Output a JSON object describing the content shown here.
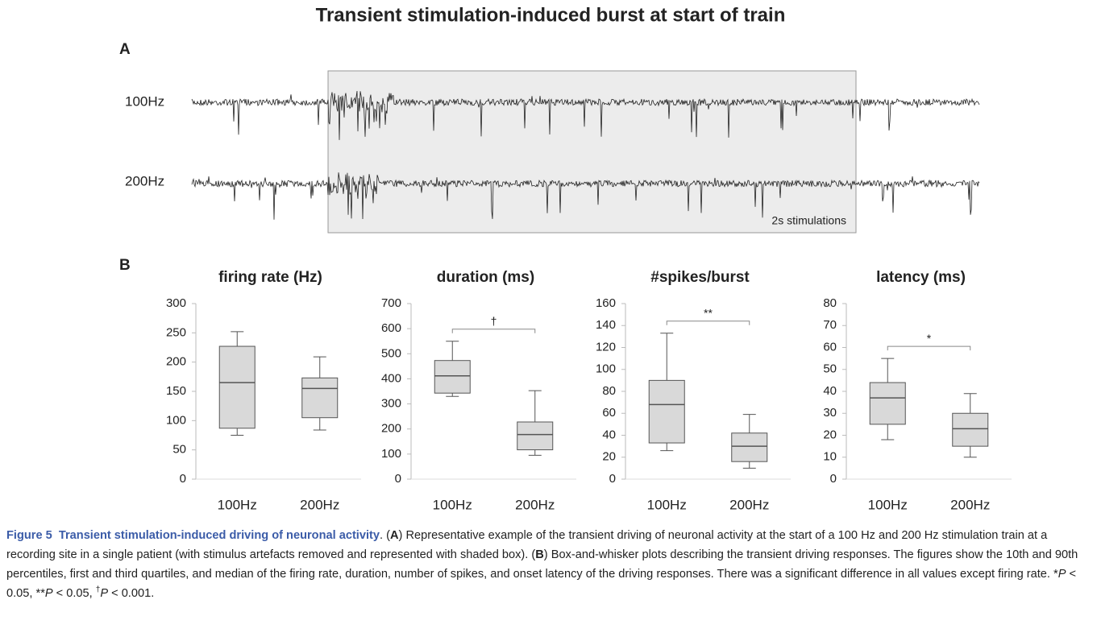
{
  "figure": {
    "title": "Transient stimulation-induced burst at start of train",
    "panel_a": "A",
    "panel_b": "B",
    "traces": [
      "100Hz",
      "200Hz"
    ],
    "stim_label": "2s stimulations"
  },
  "chart_data": [
    {
      "type": "box",
      "title": "firing rate (Hz)",
      "categories": [
        "100Hz",
        "200Hz"
      ],
      "color": "#d9d9d9",
      "boxes": [
        {
          "whislo": 75,
          "q1": 87,
          "med": 165,
          "q3": 227,
          "whishi": 252
        },
        {
          "whislo": 84,
          "q1": 105,
          "med": 155,
          "q3": 173,
          "whishi": 209
        }
      ],
      "ylim": [
        0,
        300
      ],
      "yticks": [
        0,
        50,
        100,
        150,
        200,
        250,
        300
      ]
    },
    {
      "type": "box",
      "title": "duration (ms)",
      "categories": [
        "100Hz",
        "200Hz"
      ],
      "color": "#d9d9d9",
      "annotation": "†",
      "boxes": [
        {
          "whislo": 330,
          "q1": 343,
          "med": 412,
          "q3": 473,
          "whishi": 550
        },
        {
          "whislo": 95,
          "q1": 117,
          "med": 178,
          "q3": 228,
          "whishi": 353
        }
      ],
      "ylim": [
        0,
        700
      ],
      "yticks": [
        0,
        100,
        200,
        300,
        400,
        500,
        600,
        700
      ]
    },
    {
      "type": "box",
      "title": "#spikes/burst",
      "categories": [
        "100Hz",
        "200Hz"
      ],
      "color": "#d9d9d9",
      "annotation": "**",
      "boxes": [
        {
          "whislo": 26,
          "q1": 33,
          "med": 68,
          "q3": 90,
          "whishi": 133
        },
        {
          "whislo": 10,
          "q1": 16,
          "med": 30,
          "q3": 42,
          "whishi": 59
        }
      ],
      "ylim": [
        0,
        160
      ],
      "yticks": [
        0,
        20,
        40,
        60,
        80,
        100,
        120,
        140,
        160
      ]
    },
    {
      "type": "box",
      "title": "latency (ms)",
      "categories": [
        "100Hz",
        "200Hz"
      ],
      "color": "#d9d9d9",
      "annotation": "*",
      "boxes": [
        {
          "whislo": 18,
          "q1": 25,
          "med": 37,
          "q3": 44,
          "whishi": 55
        },
        {
          "whislo": 10,
          "q1": 15,
          "med": 23,
          "q3": 30,
          "whishi": 39
        }
      ],
      "ylim": [
        0,
        80
      ],
      "yticks": [
        0,
        10,
        20,
        30,
        40,
        50,
        60,
        70,
        80
      ]
    }
  ],
  "caption": [
    "Figure 5",
    "Transient stimulation-induced driving of neuronal activity",
    ". (",
    "A",
    ") Representative example of the transient driving of neuronal activity at the start of a 100 Hz and 200 Hz stimulation train at a recording site in a single patient (with stimulus artefacts removed and represented with shaded box). (",
    "B",
    ") Box-and-whisker plots describing the transient driving responses. The figures show the 10th and 90th percentiles, first and third quartiles, and median of the firing rate, duration, number of spikes, and onset latency of the driving responses. There was a significant difference in all values except firing rate. ",
    "*",
    "P",
    " < 0.05, ",
    "**",
    "P",
    " < 0.05, ",
    "†",
    "P",
    " < 0.001."
  ]
}
